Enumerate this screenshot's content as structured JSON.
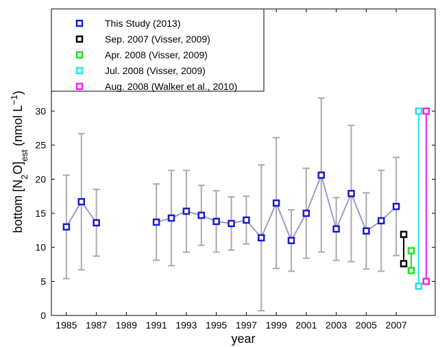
{
  "chart_data": {
    "type": "errorbar",
    "x_label": "year",
    "y_label": [
      "bottom [N",
      "2",
      "O]",
      "est",
      "  (nmol L",
      "−1",
      ")"
    ],
    "xlim": [
      1984,
      2009.6
    ],
    "xticks": [
      1985,
      1987,
      1989,
      1991,
      1993,
      1995,
      1997,
      1999,
      2001,
      2003,
      2005,
      2007
    ],
    "ylim": [
      0,
      45
    ],
    "yticks": [
      0,
      5,
      10,
      15,
      20,
      25,
      30
    ],
    "legend": "upper left",
    "errorbar_color": "#aaaaaa",
    "series": [
      {
        "name": "This Study (2013)",
        "color": "#1a1acc",
        "line_color": "#9a9ac8",
        "x": [
          1985,
          1986,
          1987,
          1988,
          1989,
          1990,
          1991,
          1992,
          1993,
          1994,
          1995,
          1996,
          1997,
          1998,
          1999,
          2000,
          2001,
          2002,
          2003,
          2004,
          2005,
          2006,
          2007
        ],
        "values": [
          13.0,
          16.7,
          13.6,
          null,
          null,
          null,
          13.7,
          14.3,
          15.3,
          14.7,
          13.8,
          13.5,
          14.0,
          11.4,
          16.5,
          11.0,
          15.0,
          20.6,
          12.7,
          17.9,
          12.4,
          13.9,
          16.0
        ],
        "errors": [
          7.6,
          10.0,
          4.9,
          null,
          null,
          null,
          5.6,
          7.0,
          6.0,
          4.4,
          4.5,
          3.9,
          3.5,
          10.7,
          9.6,
          4.5,
          6.6,
          11.3,
          4.6,
          10.0,
          5.6,
          7.4,
          7.2
        ]
      },
      {
        "name": "Sep. 2007 (Visser, 2009)",
        "color": "#000000",
        "x": [
          2007.5,
          2007.5
        ],
        "values": [
          7.6,
          11.9
        ]
      },
      {
        "name": "Apr. 2008 (Visser, 2009)",
        "color": "#22dd22",
        "x": [
          2008.0,
          2008.0
        ],
        "values": [
          6.6,
          9.5
        ]
      },
      {
        "name": "Jul. 2008 (Visser, 2009)",
        "color": "#22e5e5",
        "x": [
          2008.5,
          2008.5
        ],
        "values": [
          4.3,
          30.0
        ]
      },
      {
        "name": "Aug. 2008 (Walker et al., 2010)",
        "color": "#ee22ee",
        "x": [
          2009.0,
          2009.0
        ],
        "values": [
          5.0,
          30.0
        ]
      }
    ]
  }
}
